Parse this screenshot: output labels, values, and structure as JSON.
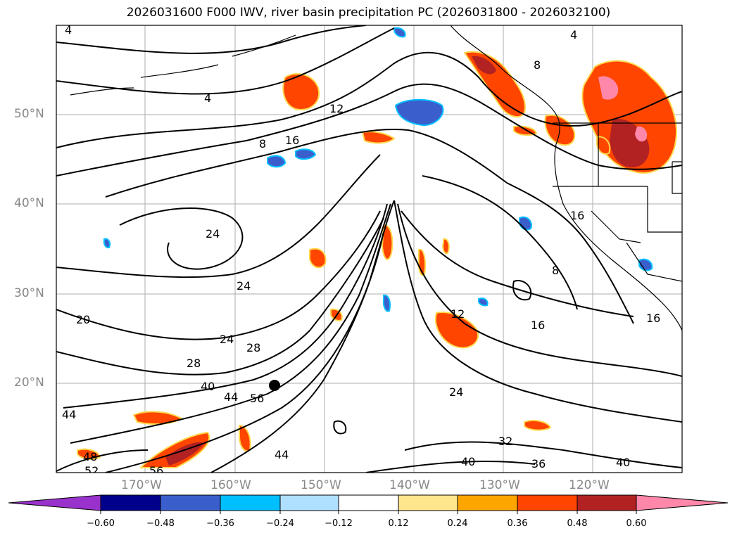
{
  "title": "2026031600 F000 IWV, river basin precipitation PC (2026031800 - 2026032100)",
  "map": {
    "lat_labels": [
      "50°N",
      "40°N",
      "30°N",
      "20°N"
    ],
    "lon_labels": [
      "170°W",
      "160°W",
      "150°W",
      "140°W",
      "130°W",
      "120°W"
    ],
    "contour_labels": [
      "4",
      "4",
      "4",
      "8",
      "8",
      "8",
      "12",
      "12",
      "16",
      "16",
      "16",
      "20",
      "24",
      "24",
      "24",
      "24",
      "28",
      "28",
      "32",
      "36",
      "40",
      "40",
      "40",
      "44",
      "44",
      "44",
      "48",
      "52",
      "56",
      "56",
      "16"
    ],
    "colors": {
      "coastline": "#000000",
      "gridline": "#999999",
      "negative_fill": [
        "#3a5fcd",
        "#00bfff"
      ],
      "positive_fill": [
        "#ffd84d",
        "#ff8c00",
        "#ff4500",
        "#b22222",
        "#ff88aa"
      ]
    }
  },
  "colorbar": {
    "ticks": [
      "−0.60",
      "−0.48",
      "−0.36",
      "−0.24",
      "−0.12",
      "0.12",
      "0.24",
      "0.36",
      "0.48",
      "0.60"
    ],
    "colors": [
      "#9932cc",
      "#00008b",
      "#3a5fcd",
      "#00bfff",
      "#b0e0ff",
      "#ffffff",
      "#ffe68c",
      "#ffa500",
      "#ff4500",
      "#b22222",
      "#ff88aa"
    ]
  }
}
